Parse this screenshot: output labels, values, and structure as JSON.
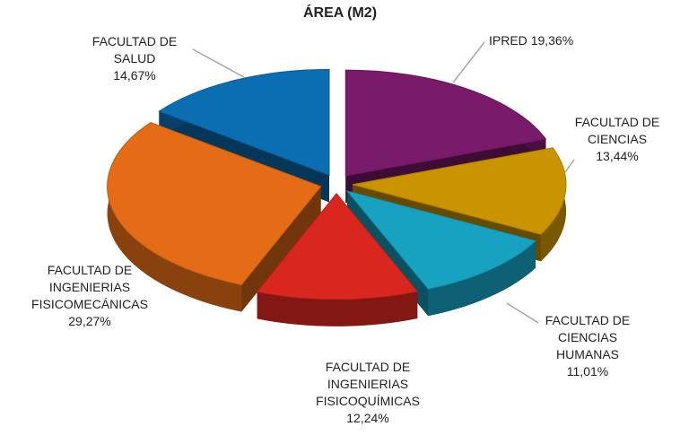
{
  "chart_data": {
    "type": "pie3d",
    "title": "ÁREA (M2)",
    "categories": [
      "IPRED",
      "FACULTAD DE CIENCIAS",
      "FACULTAD DE CIENCIAS HUMANAS",
      "FACULTAD DE INGENIERIAS FISICOQUÍMICAS",
      "FACULTAD DE INGENIERIAS FISICOMECÁNICAS",
      "FACULTAD DE SALUD"
    ],
    "values": [
      19.36,
      13.44,
      11.01,
      12.24,
      29.27,
      14.67
    ],
    "value_labels": [
      "19,36%",
      "13,44%",
      "11,01%",
      "12,24%",
      "29,27%",
      "14,67%"
    ],
    "colors": [
      "#7a1a6a",
      "#c99400",
      "#17a2c2",
      "#d9271f",
      "#e46c17",
      "#0b6db2"
    ]
  }
}
